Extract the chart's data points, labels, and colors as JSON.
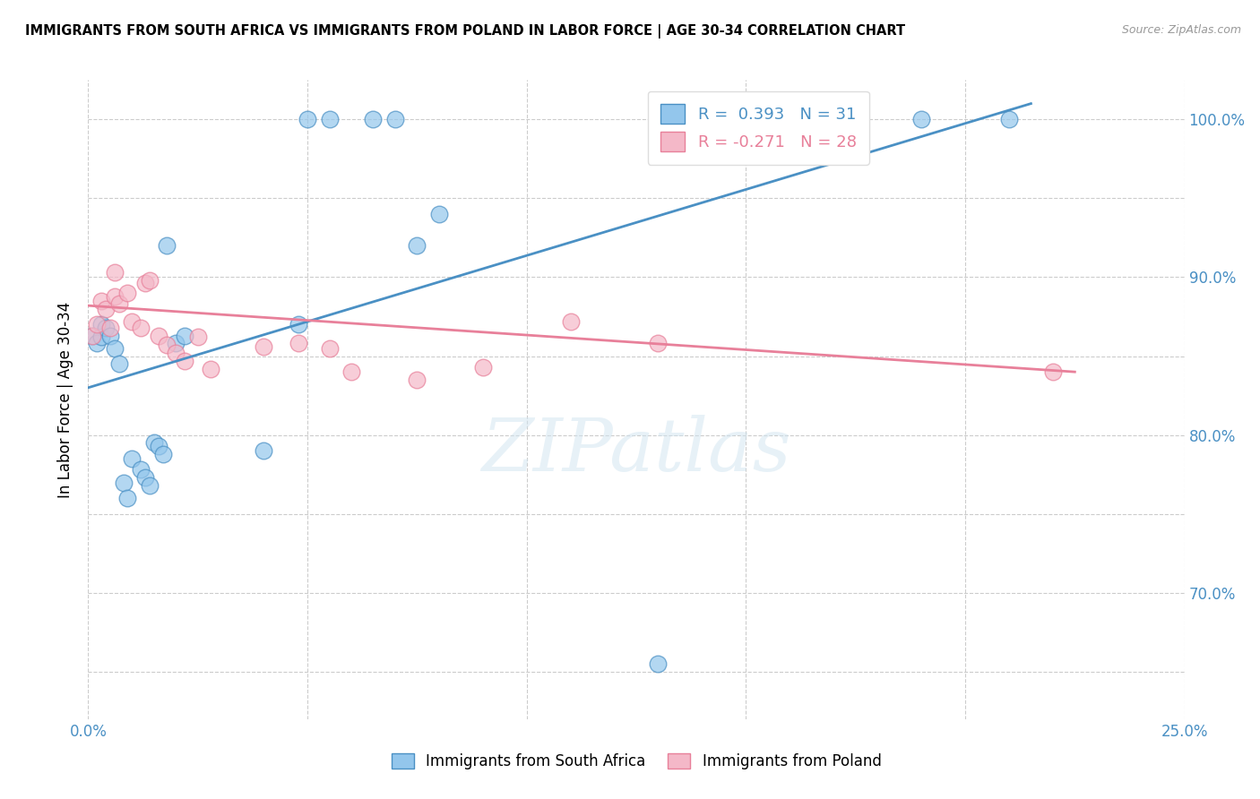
{
  "title": "IMMIGRANTS FROM SOUTH AFRICA VS IMMIGRANTS FROM POLAND IN LABOR FORCE | AGE 30-34 CORRELATION CHART",
  "source": "Source: ZipAtlas.com",
  "ylabel": "In Labor Force | Age 30-34",
  "x_min": 0.0,
  "x_max": 0.25,
  "y_min": 0.62,
  "y_max": 1.025,
  "x_tick_positions": [
    0.0,
    0.05,
    0.1,
    0.15,
    0.2,
    0.25
  ],
  "x_tick_labels": [
    "0.0%",
    "",
    "",
    "",
    "",
    "25.0%"
  ],
  "y_tick_positions": [
    0.65,
    0.7,
    0.75,
    0.8,
    0.85,
    0.9,
    0.95,
    1.0
  ],
  "y_tick_labels_right": [
    "",
    "70.0%",
    "",
    "80.0%",
    "",
    "90.0%",
    "",
    "100.0%"
  ],
  "blue_color": "#93C6EC",
  "pink_color": "#F4B8C8",
  "blue_line_color": "#4A90C4",
  "pink_line_color": "#E8809A",
  "legend_blue_label": "R =  0.393   N = 31",
  "legend_pink_label": "R = -0.271   N = 28",
  "watermark": "ZIPatlas",
  "bottom_legend_blue": "Immigrants from South Africa",
  "bottom_legend_pink": "Immigrants from Poland",
  "blue_scatter_x": [
    0.001,
    0.002,
    0.003,
    0.003,
    0.004,
    0.005,
    0.006,
    0.007,
    0.008,
    0.009,
    0.01,
    0.012,
    0.013,
    0.014,
    0.015,
    0.016,
    0.017,
    0.018,
    0.02,
    0.022,
    0.04,
    0.048,
    0.05,
    0.055,
    0.065,
    0.07,
    0.075,
    0.08,
    0.13,
    0.19,
    0.21
  ],
  "blue_scatter_y": [
    0.863,
    0.858,
    0.87,
    0.862,
    0.868,
    0.863,
    0.855,
    0.845,
    0.77,
    0.76,
    0.785,
    0.778,
    0.773,
    0.768,
    0.795,
    0.793,
    0.788,
    0.92,
    0.858,
    0.863,
    0.79,
    0.87,
    1.0,
    1.0,
    1.0,
    1.0,
    0.92,
    0.94,
    0.655,
    1.0,
    1.0
  ],
  "pink_scatter_x": [
    0.001,
    0.002,
    0.003,
    0.004,
    0.005,
    0.006,
    0.006,
    0.007,
    0.009,
    0.01,
    0.012,
    0.013,
    0.014,
    0.016,
    0.018,
    0.02,
    0.022,
    0.025,
    0.028,
    0.04,
    0.048,
    0.055,
    0.06,
    0.075,
    0.09,
    0.11,
    0.13,
    0.22
  ],
  "pink_scatter_y": [
    0.863,
    0.87,
    0.885,
    0.88,
    0.868,
    0.888,
    0.903,
    0.883,
    0.89,
    0.872,
    0.868,
    0.896,
    0.898,
    0.863,
    0.857,
    0.852,
    0.847,
    0.862,
    0.842,
    0.856,
    0.858,
    0.855,
    0.84,
    0.835,
    0.843,
    0.872,
    0.858,
    0.84
  ],
  "blue_trend_x": [
    0.0,
    0.215
  ],
  "blue_trend_y": [
    0.83,
    1.01
  ],
  "pink_trend_x": [
    0.0,
    0.225
  ],
  "pink_trend_y": [
    0.882,
    0.84
  ]
}
